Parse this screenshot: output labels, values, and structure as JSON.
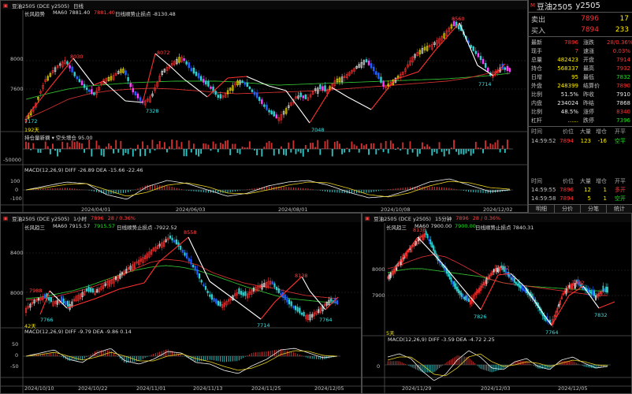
{
  "top": {
    "menu": "M",
    "code": "豆油2505",
    "name": "豆油2505 (DCE y2505)",
    "period": "日线",
    "ind1_name": "长风趋势",
    "ma_label": "MA60 7881.40",
    "ma_val": "7881.40",
    "line_label": "日线顺势止损点 -8130.48",
    "peaks": [
      "8030",
      "8072",
      "8560"
    ],
    "troughs": [
      "7172",
      "7328",
      "7048",
      "7714"
    ],
    "prices": [
      "8000",
      "7600"
    ],
    "count": "192天",
    "vol_label": "持仓量新摘 ▾  空头增仓 95.00",
    "vol_axis": "-50000",
    "macd_label": "MACD(12,26,9)  DIFF -26.89  DEA -15.66  -22.46",
    "macd_axis": [
      "100",
      "0",
      "-100"
    ],
    "dates": [
      "2024/04/01",
      "2024/06/03",
      "2024/08/01",
      "2024/10/08",
      "2024/12/02"
    ]
  },
  "quote": {
    "title": "豆油2505",
    "sym": "y2505",
    "sell": [
      "卖出",
      "7896",
      "17"
    ],
    "buy": [
      "买入",
      "7894",
      "233"
    ],
    "rows": [
      [
        "最新",
        "7896",
        "涨跌",
        "28/0.36%"
      ],
      [
        "现手",
        "7",
        "速涨",
        "0.03%"
      ],
      [
        "总量",
        "482423",
        "开盘",
        "7914"
      ],
      [
        "持仓",
        "568337",
        "最高",
        "7932"
      ],
      [
        "日增",
        "95",
        "最低",
        "7832"
      ],
      [
        "外盘",
        "248399",
        "结算价",
        "7890"
      ],
      [
        "比例",
        "51.5%",
        "昨收",
        "7910"
      ],
      [
        "内盘",
        "234024",
        "昨结",
        "7868"
      ],
      [
        "比例",
        "48.5%",
        "涨停",
        "8340"
      ],
      [
        "杠杆",
        "......",
        "跌停",
        "7396"
      ]
    ],
    "tick_head": [
      "时间",
      "价位",
      "大量",
      "增仓",
      "开平"
    ],
    "ticks1": [
      [
        "14:59:52",
        "7894",
        "123",
        "-16",
        "空平"
      ]
    ],
    "ticks2": [
      [
        "14:59:55",
        "7896",
        "12",
        "1",
        "多开"
      ],
      [
        "14:59:58",
        "7894",
        "5",
        "1",
        "空开"
      ],
      [
        "14:59:59",
        "7896",
        "7",
        "1",
        "多开"
      ]
    ],
    "tabs": [
      "明细",
      "分价",
      "分笔",
      "统计"
    ]
  },
  "bl": {
    "name": "豆油2505 (DCE y2505)",
    "period": "1小时",
    "price": "7896",
    "chg": "28 / 0.36%",
    "ind1_name": "长风趋三",
    "ma_label": "MA60 7915.57",
    "ma_val": "7915.57",
    "line_label": "日线顺势止损点 -7922.52",
    "peaks": [
      "8558",
      "8138",
      "7988"
    ],
    "troughs": [
      "7766",
      "7714",
      "7764"
    ],
    "prices": [
      "8400",
      "8000"
    ],
    "count": "42天",
    "macd_label": "MACD(12,26,9)  DIFF -9.79  DEA -9.86  0.14",
    "macd_axis": [
      "50",
      "0",
      "-50"
    ],
    "dates": [
      "2024/10/10",
      "2024/10/22",
      "2024/11/01",
      "2024/11/13",
      "2024/11/25",
      "2024/12/05"
    ]
  },
  "br": {
    "name": "豆油2505 (DCE y2505)",
    "period": "15分钟",
    "price": "7896",
    "chg": "28 / 0.36%",
    "ind1_name": "长风趋三",
    "ma_label": "MA60 7900.00",
    "ma_val": "7900.00",
    "line_label": "日线顺势止损点 7840.31",
    "peaks": [
      "8138",
      "7992",
      "7932"
    ],
    "troughs": [
      "7826",
      "7764",
      "7832"
    ],
    "prices": [
      "8000",
      "7900"
    ],
    "count": "5天",
    "macd_label": "MACD(12,26,9)  DIFF -3.59  DEA -4.72  2.25",
    "macd_axis": [
      "0"
    ],
    "dates": [
      "2024/11/29",
      "2024/12/03",
      "2024/12/05"
    ]
  }
}
